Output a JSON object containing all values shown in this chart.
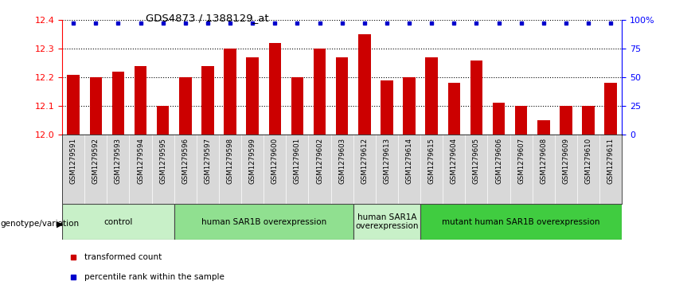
{
  "title": "GDS4873 / 1388129_at",
  "samples": [
    "GSM1279591",
    "GSM1279592",
    "GSM1279593",
    "GSM1279594",
    "GSM1279595",
    "GSM1279596",
    "GSM1279597",
    "GSM1279598",
    "GSM1279599",
    "GSM1279600",
    "GSM1279601",
    "GSM1279602",
    "GSM1279603",
    "GSM1279612",
    "GSM1279613",
    "GSM1279614",
    "GSM1279615",
    "GSM1279604",
    "GSM1279605",
    "GSM1279606",
    "GSM1279607",
    "GSM1279608",
    "GSM1279609",
    "GSM1279610",
    "GSM1279611"
  ],
  "values": [
    12.21,
    12.2,
    12.22,
    12.24,
    12.1,
    12.2,
    12.24,
    12.3,
    12.27,
    12.32,
    12.2,
    12.3,
    12.27,
    12.35,
    12.19,
    12.2,
    12.27,
    12.18,
    12.26,
    12.11,
    12.1,
    12.05,
    12.1,
    12.1,
    12.18
  ],
  "groups": [
    {
      "label": "control",
      "start": 0,
      "end": 4,
      "color": "#c8f0c8"
    },
    {
      "label": "human SAR1B overexpression",
      "start": 5,
      "end": 12,
      "color": "#90e090"
    },
    {
      "label": "human SAR1A\noverexpression",
      "start": 13,
      "end": 15,
      "color": "#c8f0c8"
    },
    {
      "label": "mutant human SAR1B overexpression",
      "start": 16,
      "end": 24,
      "color": "#40cc40"
    }
  ],
  "bar_color": "#cc0000",
  "dot_color": "#0000cc",
  "ylim_left": [
    12.0,
    12.4
  ],
  "ylim_right": [
    0,
    100
  ],
  "yticks_left": [
    12.0,
    12.1,
    12.2,
    12.3,
    12.4
  ],
  "yticks_right": [
    0,
    25,
    50,
    75,
    100
  ],
  "ytick_right_labels": [
    "0",
    "25",
    "50",
    "75",
    "100%"
  ],
  "grid_values": [
    12.1,
    12.2,
    12.3
  ],
  "legend_items": [
    {
      "label": "transformed count",
      "color": "#cc0000"
    },
    {
      "label": "percentile rank within the sample",
      "color": "#0000cc"
    }
  ],
  "genotype_label": "genotype/variation"
}
